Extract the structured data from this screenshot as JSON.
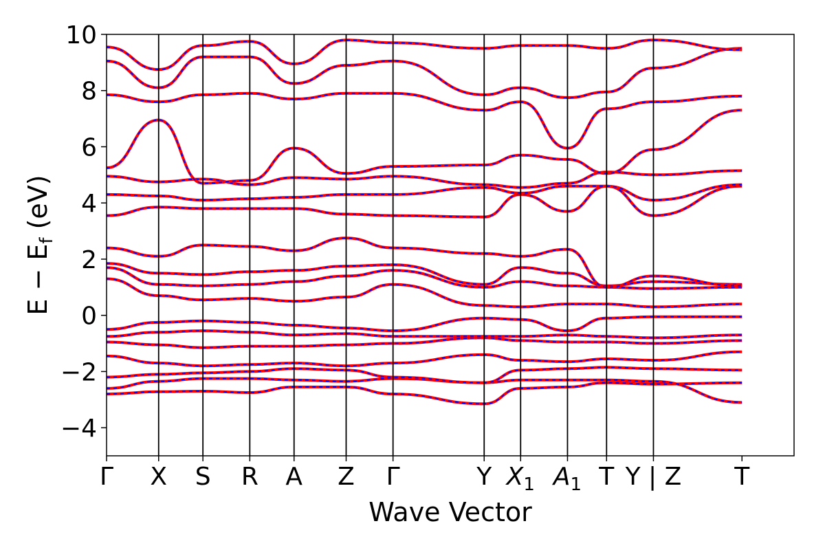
{
  "chart_data": {
    "type": "line",
    "title": "",
    "xlabel": "Wave Vector",
    "ylabel": "E − E",
    "ylabel_sub": "f",
    "ylabel_unit": "(eV)",
    "ylim": [
      -5,
      10
    ],
    "yticks": [
      -4,
      -2,
      0,
      2,
      4,
      6,
      8,
      10
    ],
    "ytick_labels": [
      "−4",
      "−2",
      "0",
      "2",
      "4",
      "6",
      "8",
      "10"
    ],
    "xlim": [
      0,
      13.2
    ],
    "path_positions": [
      0,
      1.0,
      1.85,
      2.75,
      3.6,
      4.6,
      5.5,
      7.25,
      7.95,
      8.85,
      9.6,
      10.5,
      12.2
    ],
    "path_labels": [
      {
        "main": "Γ",
        "sub": ""
      },
      {
        "main": "X",
        "sub": ""
      },
      {
        "main": "S",
        "sub": ""
      },
      {
        "main": "R",
        "sub": ""
      },
      {
        "main": "A",
        "sub": ""
      },
      {
        "main": "Z",
        "sub": ""
      },
      {
        "main": "Γ",
        "sub": ""
      },
      {
        "main": "Y",
        "sub": ""
      },
      {
        "main": "X",
        "sub": "1"
      },
      {
        "main": "A",
        "sub": "1"
      },
      {
        "main": "T",
        "sub": ""
      },
      {
        "main": "Y | Z",
        "sub": ""
      },
      {
        "main": "T",
        "sub": ""
      }
    ],
    "grid": false,
    "legend": "none",
    "series": [
      {
        "style": "solid",
        "color": "#ff0000",
        "values": [
          [
            -2.8,
            -2.72,
            -2.7,
            -2.75,
            -2.55,
            -2.55,
            -2.8,
            -3.15,
            -2.6,
            -2.55,
            -2.4,
            -2.45,
            -2.4
          ],
          [
            -2.6,
            -2.35,
            -2.25,
            -2.25,
            -2.3,
            -2.35,
            -2.25,
            -2.4,
            -2.3,
            -2.3,
            -2.3,
            -2.35,
            -3.1
          ],
          [
            -2.2,
            -2.1,
            -2.05,
            -2.0,
            -1.9,
            -1.95,
            -2.2,
            -2.4,
            -1.95,
            -1.9,
            -1.85,
            -1.9,
            -1.95
          ],
          [
            -1.45,
            -1.7,
            -1.8,
            -1.75,
            -1.7,
            -1.8,
            -1.7,
            -1.4,
            -1.6,
            -1.65,
            -1.55,
            -1.6,
            -1.3
          ],
          [
            -0.95,
            -1.05,
            -1.15,
            -1.1,
            -1.1,
            -1.05,
            -1.0,
            -0.8,
            -0.9,
            -0.95,
            -0.95,
            -1.0,
            -0.9
          ],
          [
            -0.75,
            -0.6,
            -0.55,
            -0.6,
            -0.7,
            -0.65,
            -0.75,
            -0.75,
            -0.75,
            -0.7,
            -0.75,
            -0.8,
            -0.7
          ],
          [
            -0.5,
            -0.25,
            -0.2,
            -0.25,
            -0.35,
            -0.45,
            -0.55,
            -0.1,
            -0.15,
            -0.55,
            -0.1,
            -0.05,
            -0.05
          ],
          [
            1.3,
            0.7,
            0.55,
            0.6,
            0.5,
            0.65,
            1.1,
            0.35,
            0.3,
            0.4,
            0.4,
            0.3,
            0.4
          ],
          [
            1.7,
            1.1,
            1.05,
            1.1,
            1.2,
            1.4,
            1.6,
            1.0,
            1.2,
            1.05,
            1.0,
            0.95,
            1.0
          ],
          [
            1.85,
            1.5,
            1.45,
            1.55,
            1.6,
            1.75,
            1.8,
            1.1,
            1.7,
            1.5,
            1.05,
            1.2,
            1.1
          ],
          [
            2.4,
            2.1,
            2.5,
            2.45,
            2.3,
            2.75,
            2.4,
            2.2,
            2.1,
            2.35,
            1.0,
            1.4,
            1.05
          ],
          [
            3.55,
            3.85,
            3.8,
            3.8,
            3.8,
            3.6,
            3.55,
            3.5,
            4.3,
            3.7,
            4.6,
            3.55,
            4.6
          ],
          [
            4.3,
            4.25,
            4.1,
            4.15,
            4.2,
            4.3,
            4.3,
            4.55,
            4.35,
            4.6,
            4.6,
            4.1,
            4.65
          ],
          [
            4.95,
            4.75,
            4.85,
            4.65,
            4.9,
            4.85,
            4.95,
            4.65,
            4.55,
            4.7,
            5.1,
            5.0,
            5.15
          ],
          [
            5.25,
            6.95,
            4.7,
            4.8,
            5.95,
            5.05,
            5.3,
            5.35,
            5.7,
            5.55,
            5.05,
            5.9,
            7.3
          ],
          [
            7.85,
            7.6,
            7.85,
            7.9,
            7.7,
            7.9,
            7.9,
            7.3,
            7.6,
            5.95,
            7.35,
            7.6,
            7.8
          ],
          [
            9.05,
            8.1,
            9.2,
            9.2,
            8.25,
            8.9,
            9.05,
            7.85,
            8.1,
            7.75,
            7.95,
            8.8,
            9.5
          ],
          [
            9.55,
            8.75,
            9.6,
            9.75,
            8.95,
            9.8,
            9.7,
            9.5,
            9.6,
            9.6,
            9.5,
            9.8,
            9.45
          ]
        ]
      },
      {
        "style": "dashed",
        "color": "#0000ff",
        "values": "same-as-above"
      }
    ]
  }
}
